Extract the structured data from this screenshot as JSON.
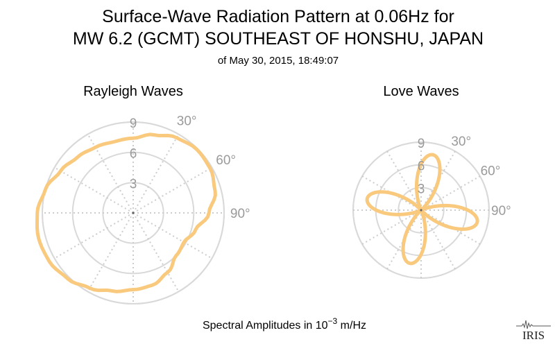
{
  "title": {
    "line1": "Surface-Wave Radiation Pattern at 0.06Hz for",
    "line2": "MW 6.2 (GCMT) SOUTHEAST OF HONSHU, JAPAN",
    "subtitle": "of May 30, 2015, 18:49:07"
  },
  "footer": {
    "xlabel_prefix": "Spectral Amplitudes in ",
    "xlabel_base": "10",
    "xlabel_exp": "−3",
    "xlabel_suffix": " m/Hz"
  },
  "logo": {
    "text": "IRIS"
  },
  "colors": {
    "curve": "#f9c97d",
    "grid": "#d9d9d9",
    "grid_dotted": "#cccccc",
    "tick_text": "#9a9a9a"
  },
  "chart_data": [
    {
      "type": "polar",
      "title": "Rayleigh Waves",
      "r_ticks": [
        3,
        6,
        9
      ],
      "r_max": 9,
      "theta_direction": "clockwise",
      "theta_zero": "north",
      "angle_tick_labels": [
        "30°",
        "60°",
        "90°"
      ],
      "grid": true,
      "series": [
        {
          "theta_deg": [
            0,
            15,
            30,
            45,
            60,
            75,
            90,
            105,
            120,
            135,
            150,
            165,
            180,
            195,
            210,
            225,
            240,
            255,
            270,
            285,
            300,
            315,
            330,
            345,
            360
          ],
          "r": [
            7.4,
            8.0,
            8.6,
            8.9,
            8.8,
            8.4,
            7.5,
            6.4,
            5.8,
            6.0,
            6.8,
            7.4,
            7.6,
            8.0,
            8.6,
            9.2,
            9.6,
            9.7,
            9.5,
            9.0,
            8.3,
            7.8,
            7.5,
            7.3,
            7.4
          ]
        }
      ]
    },
    {
      "type": "polar",
      "title": "Love Waves",
      "r_ticks": [
        3,
        6,
        9
      ],
      "r_max": 9,
      "theta_direction": "clockwise",
      "theta_zero": "north",
      "angle_tick_labels": [
        "30°",
        "60°",
        "90°"
      ],
      "grid": true,
      "series": [
        {
          "lobes": [
            {
              "azimuth_deg": 12,
              "peak": 7.5
            },
            {
              "azimuth_deg": 102,
              "peak": 7.6
            },
            {
              "azimuth_deg": 192,
              "peak": 7.2
            },
            {
              "azimuth_deg": 282,
              "peak": 7.3
            }
          ],
          "lobe_half_width_deg": 38
        }
      ]
    }
  ]
}
